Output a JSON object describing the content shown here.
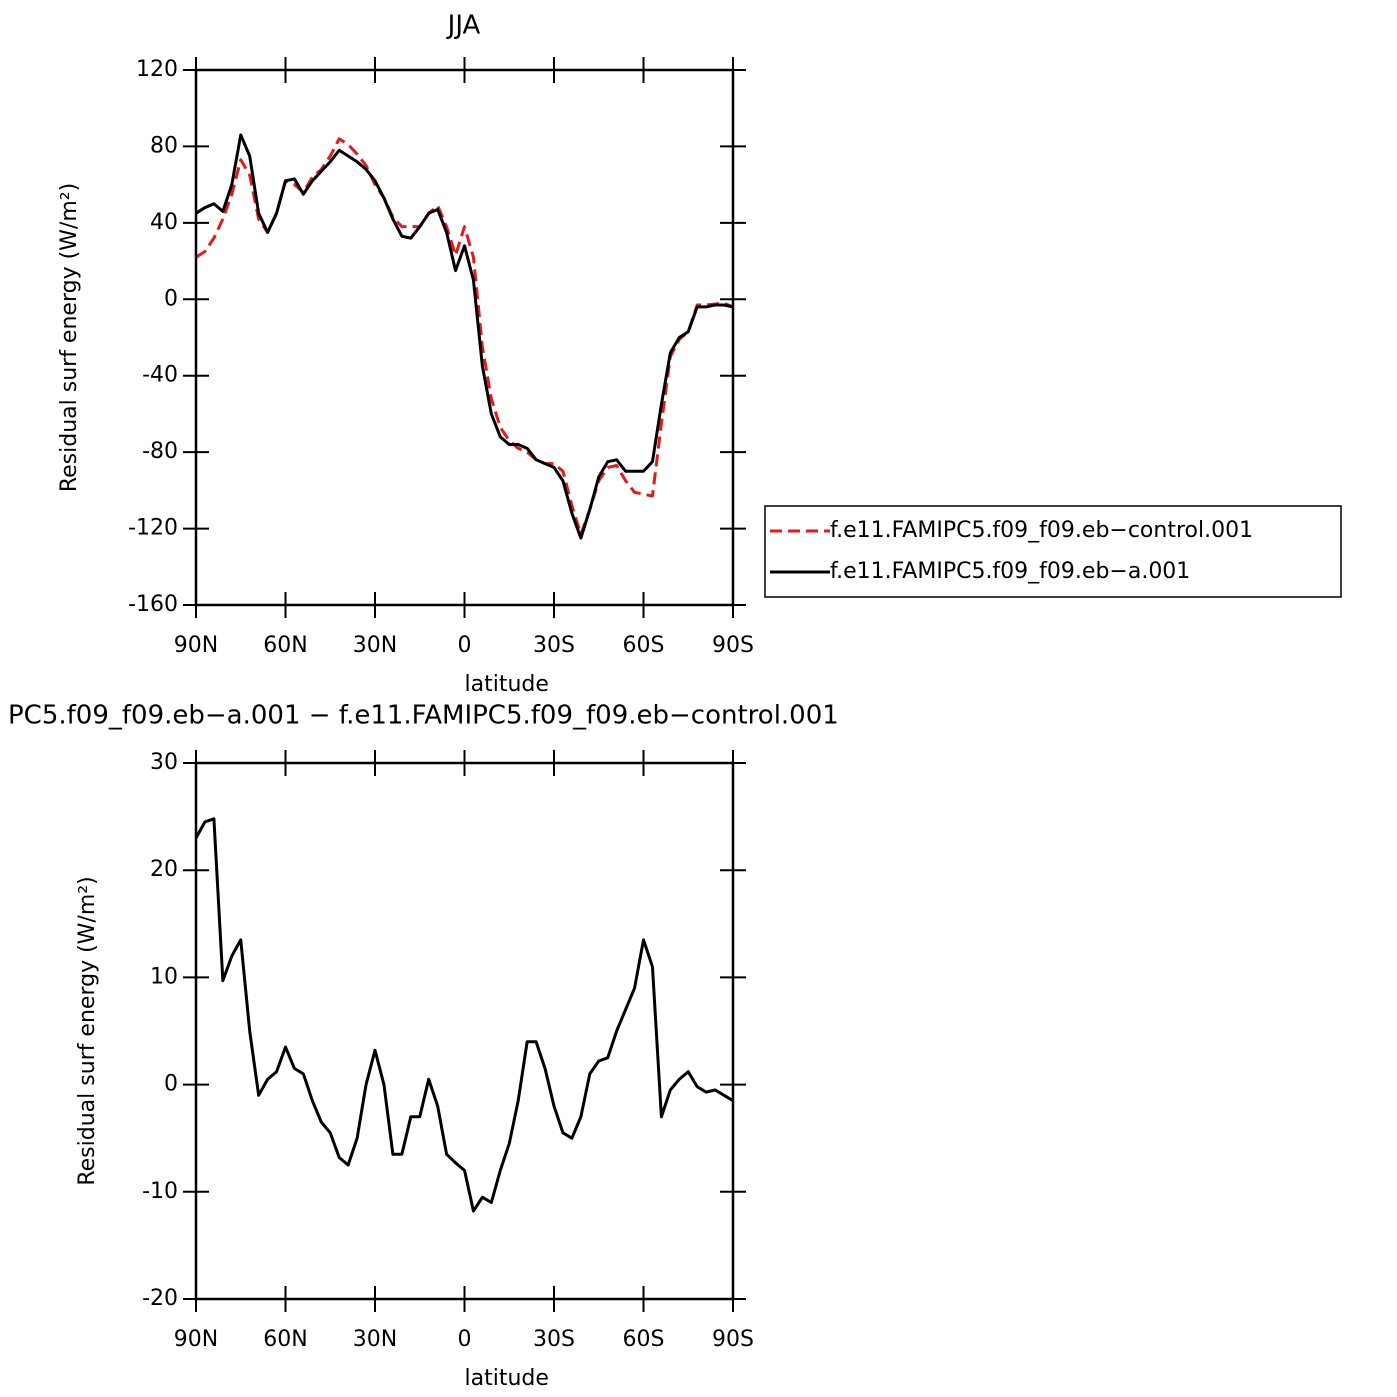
{
  "chart_data": [
    {
      "type": "line",
      "title": "JJA",
      "xlabel": "latitude",
      "ylabel": "Residual surf energy (W/m²)",
      "x": [
        90,
        87,
        84,
        81,
        78,
        75,
        72,
        69,
        66,
        63,
        60,
        57,
        54,
        51,
        48,
        45,
        42,
        39,
        36,
        33,
        30,
        27,
        24,
        21,
        18,
        15,
        12,
        9,
        6,
        3,
        0,
        -3,
        -6,
        -9,
        -12,
        -15,
        -18,
        -21,
        -24,
        -27,
        -30,
        -33,
        -36,
        -39,
        -42,
        -45,
        -48,
        -51,
        -54,
        -57,
        -60,
        -63,
        -66,
        -69,
        -72,
        -75,
        -78,
        -81,
        -84,
        -87,
        -90
      ],
      "xlim": [
        90,
        -90
      ],
      "xticks": [
        {
          "value": 90,
          "label": "90N"
        },
        {
          "value": 60,
          "label": "60N"
        },
        {
          "value": 30,
          "label": "30N"
        },
        0,
        {
          "value": -30,
          "label": "30S"
        },
        {
          "value": -60,
          "label": "60S"
        },
        {
          "value": -90,
          "label": "90S"
        }
      ],
      "ylim": [
        -160,
        120
      ],
      "yticks": [
        -160,
        -120,
        -80,
        -40,
        0,
        40,
        80,
        120
      ],
      "series": [
        {
          "name": "f.e11.FAMIPC5.f09_f09.eb−control.001",
          "color": "#e31a1c",
          "dashed": true,
          "values": [
            22,
            25,
            32,
            42,
            55,
            73,
            65,
            42,
            35,
            45,
            62,
            60,
            56,
            64,
            68,
            75,
            84,
            81,
            76,
            70,
            60,
            53,
            43,
            38,
            38,
            38,
            45,
            49,
            38,
            23,
            38,
            22,
            -25,
            -52,
            -67,
            -74,
            -78,
            -80,
            -84,
            -86,
            -86,
            -90,
            -108,
            -123,
            -110,
            -95,
            -88,
            -87,
            -95,
            -101,
            -102,
            -103,
            -65,
            -30,
            -21,
            -17,
            -3,
            -3,
            -2.5,
            -2,
            -4
          ]
        },
        {
          "name": "f.e11.FAMIPC5.f09_f09.eb−a.001",
          "color": "#000000",
          "dashed": false,
          "values": [
            45,
            48,
            50,
            46,
            60,
            86,
            75,
            45,
            35,
            45,
            62,
            63,
            55,
            62,
            67,
            72,
            78,
            75,
            72,
            68,
            62,
            53,
            42,
            33,
            32,
            38,
            45,
            47,
            35,
            15,
            28,
            10,
            -35,
            -60,
            -72,
            -76,
            -76,
            -78,
            -84,
            -86,
            -88,
            -95,
            -112,
            -125,
            -110,
            -93,
            -85,
            -84,
            -90,
            -90,
            -90,
            -85,
            -55,
            -28,
            -20,
            -17,
            -4,
            -4,
            -3,
            -3,
            -4
          ]
        }
      ]
    },
    {
      "type": "line",
      "title": "PC5.f09_f09.eb−a.001  −  f.e11.FAMIPC5.f09_f09.eb−control.001",
      "xlabel": "latitude",
      "ylabel": "Residual surf energy (W/m²)",
      "x": [
        90,
        87,
        84,
        81,
        78,
        75,
        72,
        69,
        66,
        63,
        60,
        57,
        54,
        51,
        48,
        45,
        42,
        39,
        36,
        33,
        30,
        27,
        24,
        21,
        18,
        15,
        12,
        9,
        6,
        3,
        0,
        -3,
        -6,
        -9,
        -12,
        -15,
        -18,
        -21,
        -24,
        -27,
        -30,
        -33,
        -36,
        -39,
        -42,
        -45,
        -48,
        -51,
        -54,
        -57,
        -60,
        -63,
        -66,
        -69,
        -72,
        -75,
        -78,
        -81,
        -84,
        -87,
        -90
      ],
      "xlim": [
        90,
        -90
      ],
      "xticks": [
        {
          "value": 90,
          "label": "90N"
        },
        {
          "value": 60,
          "label": "60N"
        },
        {
          "value": 30,
          "label": "30N"
        },
        0,
        {
          "value": -30,
          "label": "30S"
        },
        {
          "value": -60,
          "label": "60S"
        },
        {
          "value": -90,
          "label": "90S"
        }
      ],
      "ylim": [
        -20,
        30
      ],
      "yticks": [
        -20,
        -10,
        0,
        10,
        20,
        30
      ],
      "series": [
        {
          "color": "#000000",
          "dashed": false,
          "values": [
            23,
            24.5,
            24.8,
            9.7,
            12,
            13.5,
            5,
            -1,
            0.5,
            1.2,
            3.5,
            1.5,
            1,
            -1.5,
            -3.5,
            -4.5,
            -6.8,
            -7.5,
            -5,
            0,
            3.2,
            0,
            -6.5,
            -6.5,
            -3,
            -3,
            0.5,
            -2,
            -6.5,
            -7.3,
            -8,
            -11.8,
            -10.5,
            -11,
            -8,
            -5.5,
            -1.5,
            4,
            4,
            1.5,
            -2,
            -4.5,
            -5,
            -3,
            1,
            2.2,
            2.5,
            5,
            7,
            9,
            13.5,
            11,
            -3,
            -0.5,
            0.5,
            1.2,
            -0.2,
            -0.7,
            -0.5,
            -1,
            -1.5
          ]
        }
      ]
    }
  ]
}
